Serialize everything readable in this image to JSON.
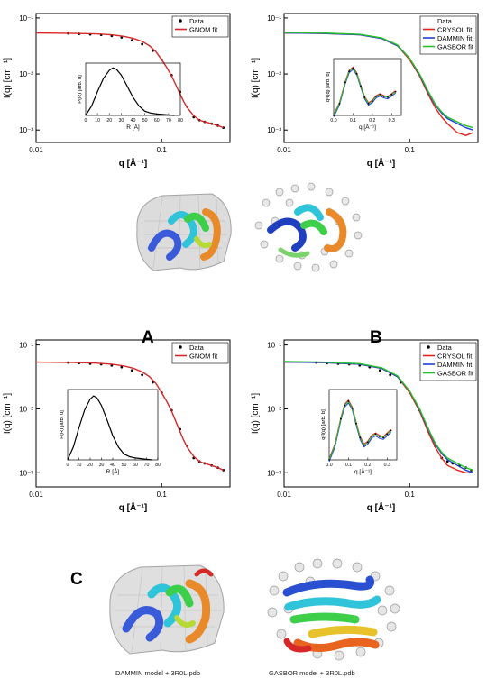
{
  "figure": {
    "panel_labels": [
      "A",
      "B",
      "C"
    ],
    "captions": [
      "DAMMIN model + 3R0L.pdb",
      "GASBOR model + 3R0L.pdb"
    ],
    "colors": {
      "data": "#000000",
      "gnom": "#d62828",
      "crysol": "#e3241b",
      "dammin": "#1f3fd6",
      "gasbor": "#27c227"
    }
  },
  "chart_data": [
    {
      "id": "top-left",
      "type": "scatter",
      "xlabel": "q [Å⁻¹]",
      "ylabel": "I(q) [cm⁻¹]",
      "xscale": "log",
      "yscale": "log",
      "xlim": [
        0.01,
        0.35
      ],
      "ylim": [
        0.0006,
        0.12
      ],
      "xticks": [
        0.01,
        0.1
      ],
      "xticklabels": [
        "0.01",
        "0.1"
      ],
      "yticks": [
        0.1,
        0.01,
        0.001
      ],
      "yticklabels": [
        "10⁻¹",
        "10⁻²",
        "10⁻³"
      ],
      "legend": "top-right",
      "series": [
        {
          "name": "Data",
          "style": "points",
          "x": [
            0.018,
            0.022,
            0.027,
            0.033,
            0.04,
            0.048,
            0.058,
            0.07,
            0.085,
            0.1,
            0.12,
            0.14,
            0.16,
            0.18,
            0.2,
            0.22,
            0.25,
            0.28,
            0.31
          ],
          "y": [
            0.053,
            0.052,
            0.051,
            0.05,
            0.048,
            0.045,
            0.04,
            0.034,
            0.026,
            0.018,
            0.0095,
            0.0048,
            0.0026,
            0.0017,
            0.0015,
            0.0014,
            0.0013,
            0.0012,
            0.0011
          ]
        },
        {
          "name": "GNOM fit",
          "style": "line",
          "x": [
            0.01,
            0.02,
            0.03,
            0.04,
            0.05,
            0.06,
            0.07,
            0.08,
            0.09,
            0.1,
            0.11,
            0.12,
            0.13,
            0.14,
            0.15,
            0.16,
            0.18,
            0.2,
            0.22,
            0.25,
            0.28,
            0.31
          ],
          "y": [
            0.054,
            0.053,
            0.052,
            0.05,
            0.047,
            0.043,
            0.038,
            0.032,
            0.025,
            0.018,
            0.013,
            0.0092,
            0.0063,
            0.0044,
            0.0032,
            0.0025,
            0.0018,
            0.0015,
            0.0014,
            0.0013,
            0.0012,
            0.0011
          ]
        }
      ],
      "inset": {
        "xlabel": "R [Å]",
        "ylabel": "P(R) [arb. u]",
        "xlim": [
          0,
          80
        ],
        "ylim": [
          0,
          1.1
        ],
        "xticks": [
          0,
          10,
          20,
          30,
          40,
          50,
          60,
          70,
          80
        ],
        "x": [
          0,
          5,
          10,
          15,
          20,
          23,
          26,
          30,
          35,
          40,
          45,
          50,
          55,
          60,
          65,
          70,
          75
        ],
        "y": [
          0,
          0.2,
          0.5,
          0.78,
          0.95,
          1.0,
          0.97,
          0.85,
          0.62,
          0.38,
          0.2,
          0.09,
          0.05,
          0.03,
          0.02,
          0.01,
          0
        ]
      }
    },
    {
      "id": "top-right",
      "type": "line",
      "xlabel": "q [Å⁻¹]",
      "ylabel": "I(q) [cm⁻¹]",
      "xscale": "log",
      "yscale": "log",
      "xlim": [
        0.01,
        0.35
      ],
      "ylim": [
        0.0006,
        0.12
      ],
      "xticks": [
        0.01,
        0.1
      ],
      "xticklabels": [
        "0.01",
        "0.1"
      ],
      "yticks": [
        0.1,
        0.01,
        0.001
      ],
      "yticklabels": [
        "10⁻¹",
        "10⁻²",
        "10⁻³"
      ],
      "legend": "top-right",
      "legend_extra": "Data",
      "series": [
        {
          "name": "CRYSOL fit",
          "style": "line",
          "x": [
            0.01,
            0.02,
            0.04,
            0.06,
            0.08,
            0.1,
            0.12,
            0.14,
            0.16,
            0.18,
            0.2,
            0.24,
            0.28,
            0.32
          ],
          "y": [
            0.054,
            0.053,
            0.05,
            0.043,
            0.032,
            0.018,
            0.0092,
            0.0044,
            0.0025,
            0.0017,
            0.0013,
            0.0009,
            0.0008,
            0.0009
          ]
        },
        {
          "name": "DAMMIN fit",
          "style": "line",
          "x": [
            0.01,
            0.02,
            0.04,
            0.06,
            0.08,
            0.1,
            0.12,
            0.14,
            0.16,
            0.18,
            0.2,
            0.24,
            0.28,
            0.32
          ],
          "y": [
            0.054,
            0.053,
            0.05,
            0.043,
            0.032,
            0.019,
            0.0097,
            0.0048,
            0.0028,
            0.002,
            0.0016,
            0.0013,
            0.0011,
            0.001
          ]
        },
        {
          "name": "GASBOR fit",
          "style": "line",
          "x": [
            0.01,
            0.02,
            0.04,
            0.06,
            0.08,
            0.1,
            0.12,
            0.14,
            0.16,
            0.18,
            0.2,
            0.24,
            0.28,
            0.32
          ],
          "y": [
            0.055,
            0.054,
            0.051,
            0.044,
            0.033,
            0.019,
            0.01,
            0.005,
            0.0029,
            0.0021,
            0.0017,
            0.0014,
            0.0012,
            0.0011
          ]
        }
      ],
      "inset": {
        "xlabel": "q [Å⁻¹]",
        "ylabel": "q²I(q) [arb. b]",
        "xlim": [
          0,
          0.35
        ],
        "ylim": [
          0,
          1.2
        ],
        "xticks": [
          0.0,
          0.1,
          0.2,
          0.3
        ],
        "xticklabels": [
          "0.0",
          "0.1",
          "0.2",
          "0.3"
        ],
        "x": [
          0.0,
          0.03,
          0.06,
          0.08,
          0.1,
          0.12,
          0.14,
          0.16,
          0.18,
          0.2,
          0.22,
          0.24,
          0.26,
          0.28,
          0.3,
          0.32
        ],
        "y": [
          0.0,
          0.25,
          0.7,
          0.93,
          1.0,
          0.88,
          0.62,
          0.38,
          0.25,
          0.3,
          0.4,
          0.44,
          0.4,
          0.38,
          0.44,
          0.5
        ]
      }
    },
    {
      "id": "bottom-left",
      "type": "scatter",
      "xlabel": "q [Å⁻¹]",
      "ylabel": "I(q) [cm⁻¹]",
      "xscale": "log",
      "yscale": "log",
      "xlim": [
        0.01,
        0.35
      ],
      "ylim": [
        0.0006,
        0.12
      ],
      "xticks": [
        0.01,
        0.1
      ],
      "xticklabels": [
        "0.01",
        "0.1"
      ],
      "yticks": [
        0.1,
        0.01,
        0.001
      ],
      "yticklabels": [
        "10⁻¹",
        "10⁻²",
        "10⁻³"
      ],
      "legend": "top-right",
      "series": [
        {
          "name": "Data",
          "style": "points",
          "x": [
            0.018,
            0.022,
            0.027,
            0.033,
            0.04,
            0.048,
            0.058,
            0.07,
            0.085,
            0.1,
            0.12,
            0.14,
            0.16,
            0.18,
            0.2,
            0.22,
            0.25,
            0.28,
            0.31
          ],
          "y": [
            0.053,
            0.052,
            0.051,
            0.05,
            0.048,
            0.045,
            0.04,
            0.034,
            0.026,
            0.018,
            0.0095,
            0.0048,
            0.0026,
            0.0017,
            0.0015,
            0.0014,
            0.0013,
            0.0012,
            0.0011
          ]
        },
        {
          "name": "GNOM fit",
          "style": "line",
          "x": [
            0.01,
            0.02,
            0.03,
            0.04,
            0.05,
            0.06,
            0.07,
            0.08,
            0.09,
            0.1,
            0.11,
            0.12,
            0.13,
            0.14,
            0.15,
            0.16,
            0.18,
            0.2,
            0.22,
            0.25,
            0.28,
            0.31
          ],
          "y": [
            0.054,
            0.053,
            0.052,
            0.05,
            0.047,
            0.043,
            0.038,
            0.032,
            0.025,
            0.018,
            0.013,
            0.0092,
            0.0063,
            0.0044,
            0.0032,
            0.0025,
            0.0018,
            0.0015,
            0.0014,
            0.0013,
            0.0012,
            0.0011
          ]
        }
      ],
      "inset": {
        "xlabel": "R [Å]",
        "ylabel": "P(R) [arb. u]",
        "xlim": [
          0,
          80
        ],
        "ylim": [
          0,
          1.1
        ],
        "xticks": [
          0,
          10,
          20,
          30,
          40,
          50,
          60,
          70,
          80
        ],
        "x": [
          0,
          5,
          10,
          15,
          20,
          23,
          26,
          30,
          35,
          40,
          45,
          50,
          55,
          60,
          65,
          70,
          75
        ],
        "y": [
          0,
          0.2,
          0.5,
          0.78,
          0.95,
          1.0,
          0.97,
          0.85,
          0.62,
          0.38,
          0.2,
          0.09,
          0.05,
          0.03,
          0.02,
          0.01,
          0
        ]
      }
    },
    {
      "id": "bottom-right",
      "type": "line",
      "xlabel": "q [Å⁻¹]",
      "ylabel": "I(q) [cm⁻¹]",
      "xscale": "log",
      "yscale": "log",
      "xlim": [
        0.01,
        0.35
      ],
      "ylim": [
        0.0006,
        0.12
      ],
      "xticks": [
        0.01,
        0.1
      ],
      "xticklabels": [
        "0.01",
        "0.1"
      ],
      "yticks": [
        0.1,
        0.01,
        0.001
      ],
      "yticklabels": [
        "10⁻¹",
        "10⁻²",
        "10⁻³"
      ],
      "legend": "top-right",
      "series": [
        {
          "name": "Data",
          "style": "points",
          "x": [
            0.018,
            0.022,
            0.027,
            0.033,
            0.04,
            0.048,
            0.058,
            0.07,
            0.085,
            0.1,
            0.12,
            0.14,
            0.16,
            0.18,
            0.2,
            0.22,
            0.25,
            0.28,
            0.31
          ],
          "y": [
            0.053,
            0.052,
            0.051,
            0.05,
            0.048,
            0.045,
            0.04,
            0.034,
            0.026,
            0.018,
            0.0095,
            0.0048,
            0.0026,
            0.0017,
            0.0015,
            0.0014,
            0.0013,
            0.0012,
            0.0011
          ]
        },
        {
          "name": "CRYSOL fit",
          "style": "line",
          "x": [
            0.01,
            0.02,
            0.04,
            0.06,
            0.08,
            0.1,
            0.12,
            0.14,
            0.16,
            0.18,
            0.2,
            0.24,
            0.28,
            0.32
          ],
          "y": [
            0.054,
            0.053,
            0.05,
            0.043,
            0.032,
            0.018,
            0.0092,
            0.0044,
            0.0025,
            0.0017,
            0.0013,
            0.0011,
            0.001,
            0.001
          ]
        },
        {
          "name": "DAMMIN fit",
          "style": "line",
          "x": [
            0.01,
            0.02,
            0.04,
            0.06,
            0.08,
            0.1,
            0.12,
            0.14,
            0.16,
            0.18,
            0.2,
            0.24,
            0.28,
            0.32
          ],
          "y": [
            0.054,
            0.053,
            0.05,
            0.043,
            0.032,
            0.019,
            0.0097,
            0.0048,
            0.0028,
            0.002,
            0.0016,
            0.0013,
            0.0011,
            0.001
          ]
        },
        {
          "name": "GASBOR fit",
          "style": "line",
          "x": [
            0.01,
            0.02,
            0.04,
            0.06,
            0.08,
            0.1,
            0.12,
            0.14,
            0.16,
            0.18,
            0.2,
            0.24,
            0.28,
            0.32
          ],
          "y": [
            0.055,
            0.054,
            0.051,
            0.044,
            0.033,
            0.019,
            0.01,
            0.005,
            0.0029,
            0.0021,
            0.0017,
            0.0014,
            0.0012,
            0.0011
          ]
        }
      ],
      "inset": {
        "xlabel": "q [Å⁻¹]",
        "ylabel": "q²I(q) [arb. b]",
        "xlim": [
          0,
          0.35
        ],
        "ylim": [
          0,
          1.2
        ],
        "xticks": [
          0.0,
          0.1,
          0.2,
          0.3
        ],
        "xticklabels": [
          "0.0",
          "0.1",
          "0.2",
          "0.3"
        ],
        "x": [
          0.0,
          0.03,
          0.06,
          0.08,
          0.1,
          0.12,
          0.14,
          0.16,
          0.18,
          0.2,
          0.22,
          0.24,
          0.26,
          0.28,
          0.3,
          0.32
        ],
        "y": [
          0.0,
          0.25,
          0.7,
          0.93,
          1.0,
          0.88,
          0.62,
          0.38,
          0.25,
          0.3,
          0.4,
          0.44,
          0.4,
          0.38,
          0.44,
          0.5
        ]
      }
    }
  ]
}
